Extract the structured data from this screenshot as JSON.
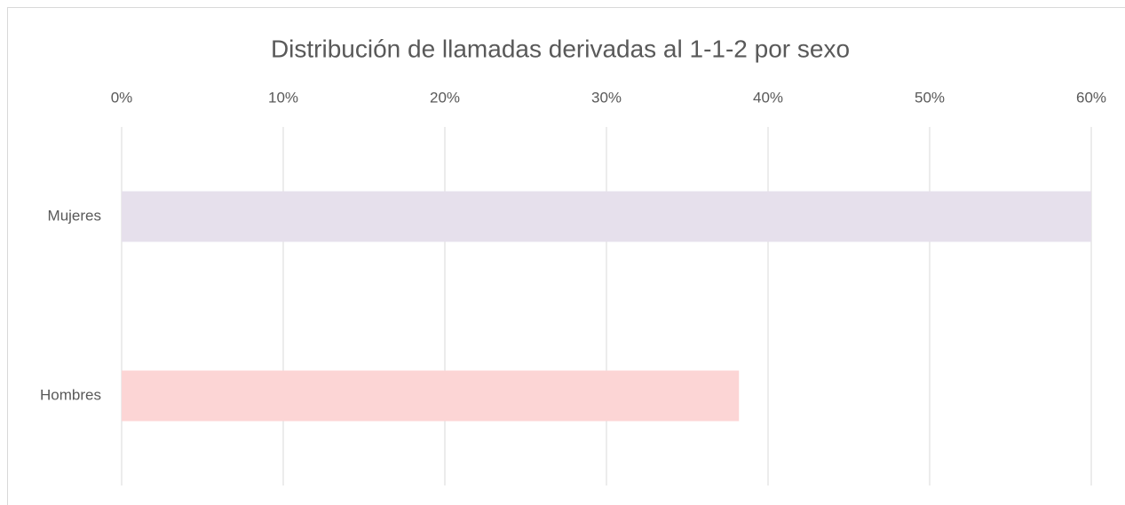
{
  "chart_data": {
    "type": "hbar",
    "title": "Distribución de llamadas derivadas al 1-1-2 por sexo",
    "categories": [
      "Mujeres",
      "Hombres"
    ],
    "values": [
      60,
      38.2
    ],
    "colors": [
      "#e6e0ec",
      "#fcd5d5"
    ],
    "xlim": [
      0,
      60
    ],
    "xticks": [
      {
        "value": 0,
        "label": "0%"
      },
      {
        "value": 10,
        "label": "10%"
      },
      {
        "value": 20,
        "label": "20%"
      },
      {
        "value": 30,
        "label": "30%"
      },
      {
        "value": 40,
        "label": "40%"
      },
      {
        "value": 50,
        "label": "50%"
      },
      {
        "value": 60,
        "label": "60%"
      }
    ],
    "grid": true
  }
}
